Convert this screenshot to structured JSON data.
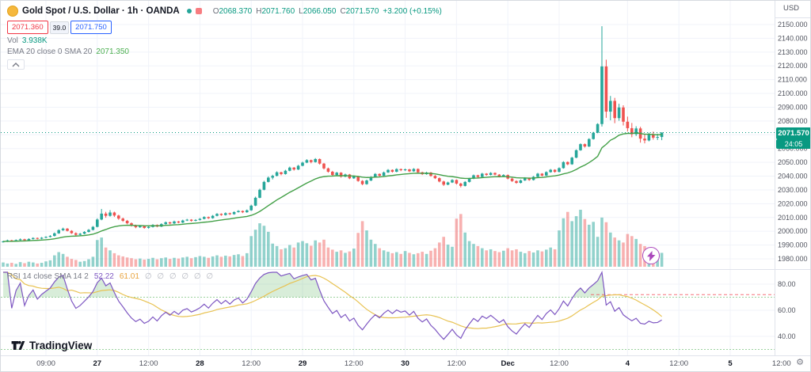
{
  "header": {
    "title": "Gold Spot / U.S. Dollar · 1h · OANDA",
    "ohlc": {
      "o_label": "O",
      "o": "2068.370",
      "h_label": "H",
      "h": "2071.760",
      "l_label": "L",
      "l": "2066.050",
      "c_label": "C",
      "c": "2071.570",
      "change": "+3.200 (+0.15%)"
    },
    "sell_price": "2071.360",
    "spread": "39.0",
    "buy_price": "2071.750",
    "vol_label": "Vol",
    "vol_value": "3.938K",
    "ma_label": "EMA 20 close 0 SMA 20",
    "ma_value": "2071.350"
  },
  "price_scale": {
    "currency": "USD",
    "badge_price": "2071.570",
    "badge_countdown": "24:05"
  },
  "rsi_legend": {
    "label": "RSI 14 close SMA 14 2",
    "value": "52.22",
    "ma_value": "61.01",
    "na_values": "∅ ∅ ∅ ∅ ∅ ∅"
  },
  "footer": {
    "logo_text": "TradingView"
  },
  "icons": {
    "gear": "⚙"
  },
  "colors": {
    "up": "#26a69a",
    "up_dark": "#089981",
    "down": "#ef5350",
    "sell": "#f23645",
    "buy": "#2962ff",
    "vol_up": "rgba(38,166,154,0.5)",
    "vol_down": "rgba(239,83,80,0.45)",
    "ema": "#43a047",
    "rsi": "#7e57c2",
    "rsi_ma": "#e8c252",
    "rsi_band": "#4caf50",
    "rsi_ob_fill": "rgba(76,175,80,0.22)",
    "grid": "#f0f3fa",
    "sep": "#e0e3eb",
    "axis_text": "#50535e",
    "axis_text_dark": "#131722"
  },
  "chart_data": {
    "type": "candlestick",
    "title": "Gold Spot / U.S. Dollar, 1h, OANDA",
    "ylabel": "Price (USD)",
    "ylim": [
      1980,
      2150
    ],
    "y_tick_step": 10,
    "vol_scale_max": 16,
    "volume_unit": "K",
    "indicators": {
      "ema_period": 20,
      "rsi_period": 14,
      "rsi_ma_period": 14
    },
    "rsi_ticks": [
      80,
      60,
      40
    ],
    "rsi_bands": [
      70,
      30
    ],
    "rsi_alert_level": 72,
    "x_ticks": [
      {
        "i": 10,
        "label": "09:00",
        "major": false
      },
      {
        "i": 22,
        "label": "27",
        "major": true
      },
      {
        "i": 34,
        "label": "12:00",
        "major": false
      },
      {
        "i": 46,
        "label": "28",
        "major": true
      },
      {
        "i": 58,
        "label": "12:00",
        "major": false
      },
      {
        "i": 70,
        "label": "29",
        "major": true
      },
      {
        "i": 82,
        "label": "12:00",
        "major": false
      },
      {
        "i": 94,
        "label": "30",
        "major": true
      },
      {
        "i": 106,
        "label": "12:00",
        "major": false
      },
      {
        "i": 118,
        "label": "Dec",
        "major": true
      },
      {
        "i": 130,
        "label": "12:00",
        "major": false
      },
      {
        "i": 146,
        "label": "4",
        "major": true
      },
      {
        "i": 158,
        "label": "12:00",
        "major": false
      },
      {
        "i": 170,
        "label": "5",
        "major": true
      },
      {
        "i": 182,
        "label": "12:00",
        "major": false
      }
    ],
    "candles": [
      [
        1992.0,
        1993.1,
        1991.8,
        1992.6,
        1.2
      ],
      [
        1992.6,
        1993.9,
        1992.2,
        1993.4,
        0.9
      ],
      [
        1993.4,
        1993.8,
        1992.4,
        1992.9,
        1.1
      ],
      [
        1992.9,
        1994.1,
        1992.5,
        1993.6,
        0.8
      ],
      [
        1993.6,
        1994.8,
        1993.2,
        1994.2,
        1.3
      ],
      [
        1994.2,
        1994.6,
        1993.0,
        1993.5,
        1.0
      ],
      [
        1993.5,
        1994.9,
        1993.1,
        1994.4,
        1.4
      ],
      [
        1994.4,
        1995.6,
        1994.0,
        1995.1,
        1.2
      ],
      [
        1995.1,
        1995.5,
        1994.1,
        1994.6,
        0.9
      ],
      [
        1994.6,
        1995.8,
        1994.2,
        1995.3,
        1.1
      ],
      [
        1995.3,
        1996.4,
        1994.9,
        1995.9,
        1.5
      ],
      [
        1995.9,
        1997.2,
        1995.5,
        1996.6,
        1.8
      ],
      [
        1996.6,
        1999.1,
        1996.2,
        1998.5,
        3.2
      ],
      [
        1998.5,
        2001.4,
        1998.1,
        2000.8,
        4.1
      ],
      [
        2000.8,
        2002.6,
        2000.2,
        2001.9,
        3.6
      ],
      [
        2001.9,
        2002.3,
        1999.8,
        2000.3,
        2.8
      ],
      [
        2000.3,
        2000.8,
        1998.1,
        1998.6,
        2.2
      ],
      [
        1998.6,
        1999.2,
        1996.8,
        1997.4,
        1.9
      ],
      [
        1997.4,
        1998.8,
        1997.0,
        1998.2,
        1.4
      ],
      [
        1998.2,
        2000.1,
        1997.8,
        1999.5,
        1.6
      ],
      [
        1999.5,
        2001.6,
        1999.1,
        2001.0,
        2.1
      ],
      [
        2001.0,
        2003.8,
        2000.6,
        2003.2,
        2.8
      ],
      [
        2003.2,
        2009.4,
        2002.8,
        2008.5,
        7.5
      ],
      [
        2008.5,
        2016.2,
        2008.0,
        2012.8,
        8.2
      ],
      [
        2012.8,
        2014.1,
        2009.8,
        2011.2,
        5.4
      ],
      [
        2011.2,
        2015.3,
        2010.6,
        2013.6,
        4.6
      ],
      [
        2013.6,
        2014.2,
        2010.4,
        2011.4,
        3.8
      ],
      [
        2011.4,
        2012.0,
        2008.3,
        2009.2,
        3.2
      ],
      [
        2009.2,
        2009.9,
        2006.8,
        2007.6,
        2.9
      ],
      [
        2007.6,
        2008.2,
        2005.1,
        2005.8,
        2.6
      ],
      [
        2005.8,
        2006.4,
        2003.4,
        2004.1,
        2.4
      ],
      [
        2004.1,
        2004.8,
        2002.2,
        2002.9,
        2.1
      ],
      [
        2002.9,
        2004.4,
        2002.4,
        2003.8,
        2.3
      ],
      [
        2003.8,
        2004.2,
        2001.8,
        2002.4,
        2.0
      ],
      [
        2002.4,
        2003.7,
        2001.9,
        2003.1,
        2.2
      ],
      [
        2003.1,
        2005.2,
        2002.7,
        2004.6,
        2.5
      ],
      [
        2004.6,
        2005.0,
        2002.9,
        2003.4,
        2.1
      ],
      [
        2003.4,
        2005.8,
        2003.0,
        2005.2,
        2.4
      ],
      [
        2005.2,
        2007.1,
        2004.8,
        2006.5,
        2.6
      ],
      [
        2006.5,
        2006.9,
        2005.0,
        2005.7,
        2.2
      ],
      [
        2005.7,
        2007.7,
        2005.3,
        2007.1,
        2.5
      ],
      [
        2007.1,
        2007.5,
        2005.8,
        2006.3,
        2.3
      ],
      [
        2006.3,
        2008.4,
        2005.9,
        2007.8,
        2.6
      ],
      [
        2007.8,
        2009.0,
        2007.4,
        2008.4,
        2.8
      ],
      [
        2008.4,
        2008.8,
        2007.0,
        2007.6,
        2.4
      ],
      [
        2007.6,
        2008.8,
        2007.2,
        2008.2,
        2.7
      ],
      [
        2008.2,
        2009.6,
        2007.8,
        2009.0,
        3.0
      ],
      [
        2009.0,
        2010.9,
        2008.6,
        2010.3,
        2.8
      ],
      [
        2010.3,
        2010.7,
        2008.9,
        2009.5,
        2.5
      ],
      [
        2009.5,
        2011.8,
        2009.1,
        2011.2,
        2.9
      ],
      [
        2011.2,
        2013.2,
        2010.8,
        2012.6,
        3.2
      ],
      [
        2012.6,
        2013.0,
        2011.2,
        2011.8,
        2.8
      ],
      [
        2011.8,
        2013.7,
        2011.4,
        2013.1,
        3.1
      ],
      [
        2013.1,
        2013.5,
        2011.8,
        2012.4,
        2.9
      ],
      [
        2012.4,
        2014.5,
        2012.0,
        2013.9,
        3.3
      ],
      [
        2013.9,
        2015.3,
        2013.5,
        2014.7,
        3.5
      ],
      [
        2014.7,
        2015.1,
        2013.2,
        2013.8,
        3.0
      ],
      [
        2013.8,
        2015.8,
        2013.4,
        2015.2,
        3.8
      ],
      [
        2015.2,
        2019.3,
        2014.8,
        2018.6,
        8.6
      ],
      [
        2018.6,
        2025.1,
        2018.2,
        2024.3,
        10.4
      ],
      [
        2024.3,
        2030.9,
        2023.9,
        2030.1,
        12.2
      ],
      [
        2030.1,
        2036.6,
        2029.7,
        2035.8,
        11.5
      ],
      [
        2035.8,
        2039.8,
        2035.4,
        2038.9,
        9.8
      ],
      [
        2038.9,
        2041.0,
        2037.6,
        2040.2,
        6.5
      ],
      [
        2040.2,
        2043.5,
        2039.8,
        2042.8,
        5.8
      ],
      [
        2042.8,
        2043.2,
        2040.6,
        2041.5,
        4.9
      ],
      [
        2041.5,
        2044.6,
        2041.1,
        2043.9,
        5.2
      ],
      [
        2043.9,
        2046.9,
        2043.5,
        2046.2,
        6.1
      ],
      [
        2046.2,
        2046.6,
        2044.0,
        2044.8,
        5.4
      ],
      [
        2044.8,
        2048.2,
        2044.4,
        2047.5,
        6.8
      ],
      [
        2047.5,
        2050.5,
        2047.1,
        2049.8,
        7.2
      ],
      [
        2049.8,
        2052.3,
        2049.4,
        2051.6,
        6.6
      ],
      [
        2051.6,
        2052.0,
        2049.3,
        2050.2,
        5.9
      ],
      [
        2050.2,
        2053.1,
        2049.8,
        2052.4,
        7.4
      ],
      [
        2052.4,
        2052.8,
        2048.4,
        2049.1,
        6.8
      ],
      [
        2049.1,
        2049.6,
        2044.8,
        2045.6,
        7.6
      ],
      [
        2045.6,
        2046.2,
        2042.5,
        2043.2,
        5.4
      ],
      [
        2043.2,
        2043.8,
        2040.1,
        2040.8,
        4.8
      ],
      [
        2040.8,
        2043.1,
        2040.4,
        2042.5,
        4.2
      ],
      [
        2042.5,
        2042.9,
        2038.9,
        2039.6,
        4.6
      ],
      [
        2039.6,
        2041.8,
        2039.2,
        2041.2,
        3.9
      ],
      [
        2041.2,
        2041.6,
        2037.8,
        2038.4,
        4.3
      ],
      [
        2038.4,
        2040.4,
        2038.0,
        2039.8,
        5.1
      ],
      [
        2039.8,
        2040.2,
        2035.9,
        2036.5,
        9.5
      ],
      [
        2036.5,
        2037.1,
        2033.4,
        2034.2,
        12.8
      ],
      [
        2034.2,
        2037.4,
        2033.8,
        2036.8,
        10.2
      ],
      [
        2036.8,
        2040.0,
        2036.4,
        2039.4,
        7.6
      ],
      [
        2039.4,
        2042.2,
        2039.0,
        2041.6,
        6.4
      ],
      [
        2041.6,
        2042.0,
        2039.6,
        2040.3,
        5.2
      ],
      [
        2040.3,
        2043.3,
        2039.9,
        2042.7,
        4.6
      ],
      [
        2042.7,
        2045.1,
        2042.3,
        2044.5,
        4.2
      ],
      [
        2044.5,
        2044.9,
        2042.6,
        2043.2,
        3.8
      ],
      [
        2043.2,
        2045.7,
        2042.8,
        2045.1,
        4.1
      ],
      [
        2045.1,
        2045.5,
        2043.6,
        2044.3,
        3.6
      ],
      [
        2044.3,
        2045.5,
        2043.7,
        2044.9,
        4.4
      ],
      [
        2044.9,
        2045.3,
        2042.9,
        2043.5,
        3.9
      ],
      [
        2043.5,
        2045.8,
        2043.1,
        2045.2,
        3.5
      ],
      [
        2045.2,
        2045.6,
        2042.2,
        2042.8,
        3.8
      ],
      [
        2042.8,
        2043.2,
        2040.8,
        2041.4,
        4.2
      ],
      [
        2041.4,
        2043.2,
        2041.0,
        2042.6,
        3.6
      ],
      [
        2042.6,
        2043.0,
        2039.6,
        2040.2,
        4.5
      ],
      [
        2040.2,
        2040.8,
        2037.9,
        2038.5,
        5.2
      ],
      [
        2038.5,
        2039.1,
        2035.5,
        2036.1,
        6.8
      ],
      [
        2036.1,
        2036.7,
        2032.9,
        2033.8,
        8.4
      ],
      [
        2033.8,
        2036.0,
        2033.4,
        2035.4,
        6.2
      ],
      [
        2035.4,
        2037.8,
        2035.0,
        2037.2,
        5.6
      ],
      [
        2037.2,
        2037.6,
        2033.9,
        2034.6,
        13.5
      ],
      [
        2034.6,
        2035.2,
        2031.8,
        2032.9,
        14.8
      ],
      [
        2032.9,
        2036.4,
        2032.5,
        2035.8,
        9.6
      ],
      [
        2035.8,
        2038.8,
        2035.4,
        2038.2,
        7.2
      ],
      [
        2038.2,
        2041.2,
        2037.8,
        2040.6,
        6.4
      ],
      [
        2040.6,
        2041.0,
        2038.8,
        2039.4,
        5.8
      ],
      [
        2039.4,
        2042.4,
        2039.0,
        2041.8,
        5.2
      ],
      [
        2041.8,
        2042.2,
        2040.2,
        2040.9,
        4.6
      ],
      [
        2040.9,
        2042.9,
        2040.5,
        2042.3,
        4.9
      ],
      [
        2042.3,
        2042.7,
        2040.5,
        2041.1,
        4.4
      ],
      [
        2041.1,
        2041.5,
        2039.1,
        2039.7,
        4.1
      ],
      [
        2039.7,
        2041.4,
        2039.3,
        2040.8,
        4.5
      ],
      [
        2040.8,
        2041.2,
        2037.6,
        2038.2,
        5.2
      ],
      [
        2038.2,
        2038.8,
        2035.8,
        2036.4,
        4.6
      ],
      [
        2036.4,
        2037.0,
        2034.5,
        2035.1,
        4.9
      ],
      [
        2035.1,
        2037.5,
        2034.7,
        2036.9,
        4.2
      ],
      [
        2036.9,
        2039.2,
        2036.5,
        2038.6,
        3.8
      ],
      [
        2038.6,
        2039.0,
        2036.6,
        2037.2,
        4.4
      ],
      [
        2037.2,
        2040.1,
        2036.8,
        2039.5,
        4.0
      ],
      [
        2039.5,
        2042.4,
        2039.1,
        2041.8,
        4.6
      ],
      [
        2041.8,
        2042.2,
        2039.8,
        2040.4,
        4.3
      ],
      [
        2040.4,
        2043.5,
        2040.0,
        2042.9,
        4.8
      ],
      [
        2042.9,
        2045.2,
        2042.5,
        2044.6,
        5.4
      ],
      [
        2044.6,
        2045.0,
        2042.5,
        2043.1,
        4.9
      ],
      [
        2043.1,
        2046.4,
        2042.7,
        2045.8,
        10.2
      ],
      [
        2045.8,
        2050.8,
        2045.4,
        2050.2,
        13.6
      ],
      [
        2050.2,
        2050.7,
        2047.9,
        2048.6,
        15.4
      ],
      [
        2048.6,
        2054.0,
        2048.2,
        2053.4,
        12.8
      ],
      [
        2053.4,
        2059.4,
        2053.0,
        2058.8,
        14.2
      ],
      [
        2058.8,
        2063.8,
        2058.4,
        2063.2,
        16.0
      ],
      [
        2063.2,
        2063.7,
        2060.7,
        2061.5,
        13.4
      ],
      [
        2061.5,
        2067.5,
        2061.1,
        2066.9,
        11.8
      ],
      [
        2066.9,
        2072.1,
        2066.5,
        2071.5,
        12.6
      ],
      [
        2071.5,
        2078.4,
        2071.1,
        2077.8,
        8.4
      ],
      [
        2077.8,
        2148.8,
        2076.0,
        2119.6,
        13.8
      ],
      [
        2119.6,
        2124.5,
        2082.3,
        2086.8,
        12.5
      ],
      [
        2086.8,
        2098.2,
        2080.5,
        2094.6,
        9.6
      ],
      [
        2094.6,
        2096.8,
        2078.4,
        2082.1,
        8.2
      ],
      [
        2082.1,
        2092.5,
        2080.2,
        2089.8,
        7.4
      ],
      [
        2089.8,
        2091.4,
        2076.8,
        2079.5,
        6.8
      ],
      [
        2079.5,
        2083.2,
        2072.4,
        2074.8,
        9.2
      ],
      [
        2074.8,
        2078.6,
        2068.2,
        2070.4,
        8.6
      ],
      [
        2070.4,
        2076.2,
        2069.1,
        2074.6,
        7.8
      ],
      [
        2074.6,
        2075.8,
        2064.3,
        2067.2,
        6.4
      ],
      [
        2067.2,
        2070.4,
        2063.8,
        2065.9,
        5.8
      ],
      [
        2065.9,
        2071.6,
        2065.2,
        2070.1,
        5.2
      ],
      [
        2070.1,
        2072.3,
        2066.5,
        2067.9,
        4.6
      ],
      [
        2067.9,
        2070.8,
        2066.2,
        2068.4,
        4.2
      ],
      [
        2068.4,
        2071.8,
        2066.1,
        2071.6,
        3.9
      ]
    ]
  }
}
